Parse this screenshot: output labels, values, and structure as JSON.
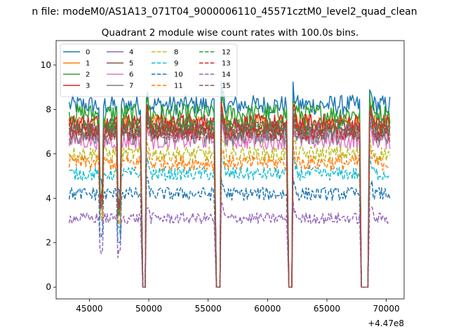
{
  "chart_data": {
    "type": "line",
    "suptitle": "n file: modeM0/AS1A13_071T04_9000006110_45571cztM0_level2_quad_clean",
    "title": "Quadrant 2 module wise count rates with 100.0s bins.",
    "xlabel": "",
    "ylabel": "",
    "xlim": [
      42200,
      71500
    ],
    "ylim": [
      -0.53,
      11.1
    ],
    "x_offset_label": "+4.47e8",
    "x_ticks": [
      45000,
      50000,
      55000,
      60000,
      65000,
      70000
    ],
    "x_tick_labels": [
      "45000",
      "50000",
      "55000",
      "60000",
      "65000",
      "70000"
    ],
    "y_ticks": [
      0,
      2,
      4,
      6,
      8,
      10
    ],
    "y_tick_labels": [
      "0",
      "2",
      "4",
      "6",
      "8",
      "10"
    ],
    "grid": false,
    "legend": {
      "placement": "upper-left",
      "columns": 4
    },
    "data_segments": [
      [
        43300,
        49350
      ],
      [
        49800,
        55550
      ],
      [
        56100,
        61650
      ],
      [
        62150,
        67750
      ],
      [
        68600,
        70300
      ]
    ],
    "zero_gaps": [
      [
        49500,
        49700
      ],
      [
        55700,
        56000
      ],
      [
        61800,
        62050
      ],
      [
        67900,
        68450
      ]
    ],
    "series": [
      {
        "name": "0",
        "color": "#1f77b4",
        "dash": "solid",
        "level": 8.2,
        "noise": 0.45
      },
      {
        "name": "1",
        "color": "#ff7f0e",
        "dash": "solid",
        "level": 7.3,
        "noise": 0.5
      },
      {
        "name": "2",
        "color": "#2ca02c",
        "dash": "solid",
        "level": 7.8,
        "noise": 0.45
      },
      {
        "name": "3",
        "color": "#d62728",
        "dash": "solid",
        "level": 7.4,
        "noise": 0.4
      },
      {
        "name": "4",
        "color": "#9467bd",
        "dash": "solid",
        "level": 7.0,
        "noise": 0.4
      },
      {
        "name": "5",
        "color": "#8c564b",
        "dash": "solid",
        "level": 7.2,
        "noise": 0.4
      },
      {
        "name": "6",
        "color": "#e377c2",
        "dash": "solid",
        "level": 6.6,
        "noise": 0.4
      },
      {
        "name": "7",
        "color": "#7f7f7f",
        "dash": "solid",
        "level": 6.8,
        "noise": 0.4
      },
      {
        "name": "8",
        "color": "#bcbd22",
        "dash": "dashed",
        "level": 6.0,
        "noise": 0.35
      },
      {
        "name": "9",
        "color": "#17becf",
        "dash": "dashed",
        "level": 5.1,
        "noise": 0.3
      },
      {
        "name": "10",
        "color": "#1f77b4",
        "dash": "dashed",
        "level": 4.2,
        "noise": 0.3
      },
      {
        "name": "11",
        "color": "#ff7f0e",
        "dash": "dashed",
        "level": 5.6,
        "noise": 0.35
      },
      {
        "name": "12",
        "color": "#2ca02c",
        "dash": "dashed",
        "level": 7.2,
        "noise": 0.4
      },
      {
        "name": "13",
        "color": "#d62728",
        "dash": "dashed",
        "level": 7.0,
        "noise": 0.4
      },
      {
        "name": "14",
        "color": "#9467bd",
        "dash": "dashed",
        "level": 3.1,
        "noise": 0.25
      },
      {
        "name": "15",
        "color": "#8c564b",
        "dash": "dashed",
        "level": 7.0,
        "noise": 0.4
      }
    ]
  }
}
